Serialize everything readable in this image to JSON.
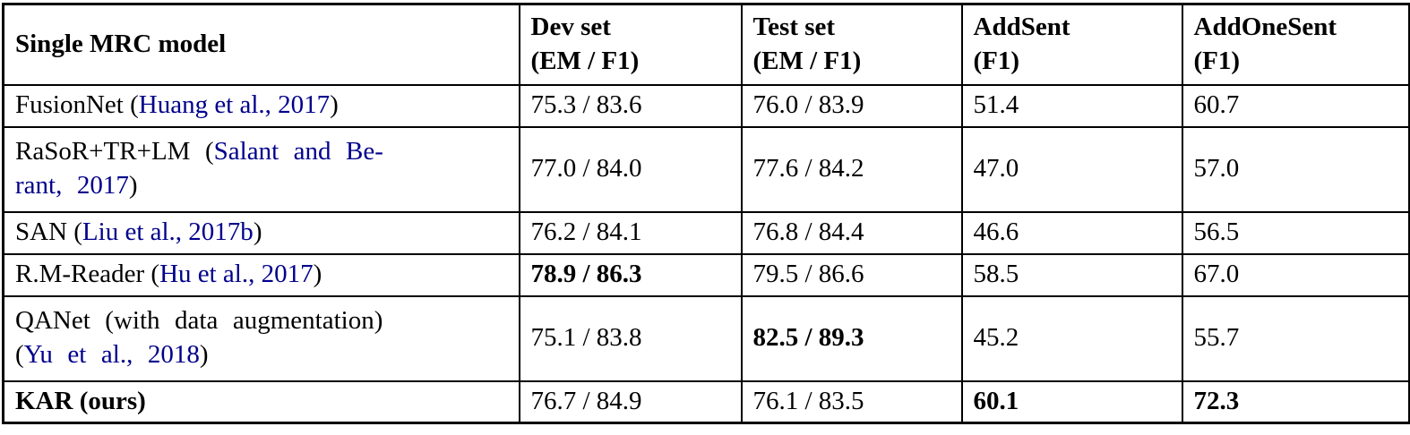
{
  "meta": {
    "link_color": "#00008B",
    "border_color": "#000000"
  },
  "table": {
    "headers": [
      {
        "line1": "Single MRC model",
        "line2": ""
      },
      {
        "line1": "Dev set",
        "line2": "(EM / F1)"
      },
      {
        "line1": "Test set",
        "line2": "(EM / F1)"
      },
      {
        "line1": "AddSent",
        "line2": "(F1)"
      },
      {
        "line1": "AddOneSent",
        "line2": "(F1)"
      }
    ],
    "rows": [
      {
        "model": [
          {
            "t": "FusionNet ("
          },
          {
            "t": "Huang et al., 2017",
            "link": true
          },
          {
            "t": ")"
          }
        ],
        "cells": [
          {
            "t": "75.3 / 83.6",
            "bold": false
          },
          {
            "t": "76.0 / 83.9",
            "bold": false
          },
          {
            "t": "51.4",
            "bold": false
          },
          {
            "t": "60.7",
            "bold": false
          }
        ]
      },
      {
        "model": [
          {
            "t": "RaSoR+TR+LM ("
          },
          {
            "t": "Salant and Be-",
            "link": true
          },
          {
            "br": true
          },
          {
            "t": "rant, 2017",
            "link": true
          },
          {
            "t": ")"
          }
        ],
        "cells": [
          {
            "t": "77.0 / 84.0",
            "bold": false
          },
          {
            "t": "77.6 / 84.2",
            "bold": false
          },
          {
            "t": "47.0",
            "bold": false
          },
          {
            "t": "57.0",
            "bold": false
          }
        ]
      },
      {
        "model": [
          {
            "t": "SAN ("
          },
          {
            "t": "Liu et al., 2017b",
            "link": true
          },
          {
            "t": ")"
          }
        ],
        "cells": [
          {
            "t": "76.2 / 84.1",
            "bold": false
          },
          {
            "t": "76.8 / 84.4",
            "bold": false
          },
          {
            "t": "46.6",
            "bold": false
          },
          {
            "t": "56.5",
            "bold": false
          }
        ]
      },
      {
        "model": [
          {
            "t": "R.M-Reader ("
          },
          {
            "t": "Hu et al., 2017",
            "link": true
          },
          {
            "t": ")"
          }
        ],
        "cells": [
          {
            "t": "78.9 / 86.3",
            "bold": true
          },
          {
            "t": "79.5 / 86.6",
            "bold": false
          },
          {
            "t": "58.5",
            "bold": false
          },
          {
            "t": "67.0",
            "bold": false
          }
        ]
      },
      {
        "model": [
          {
            "t": "QANet (with data augmentation)"
          },
          {
            "br": true
          },
          {
            "t": "("
          },
          {
            "t": "Yu et al., 2018",
            "link": true
          },
          {
            "t": ")"
          }
        ],
        "cells": [
          {
            "t": "75.1 / 83.8",
            "bold": false
          },
          {
            "t": "82.5 / 89.3",
            "bold": true
          },
          {
            "t": "45.2",
            "bold": false
          },
          {
            "t": "55.7",
            "bold": false
          }
        ]
      },
      {
        "model": [
          {
            "t": "KAR (ours)",
            "bold": true
          }
        ],
        "cells": [
          {
            "t": "76.7 / 84.9",
            "bold": false
          },
          {
            "t": "76.1 / 83.5",
            "bold": false
          },
          {
            "t": "60.1",
            "bold": true
          },
          {
            "t": "72.3",
            "bold": true
          }
        ]
      }
    ]
  }
}
